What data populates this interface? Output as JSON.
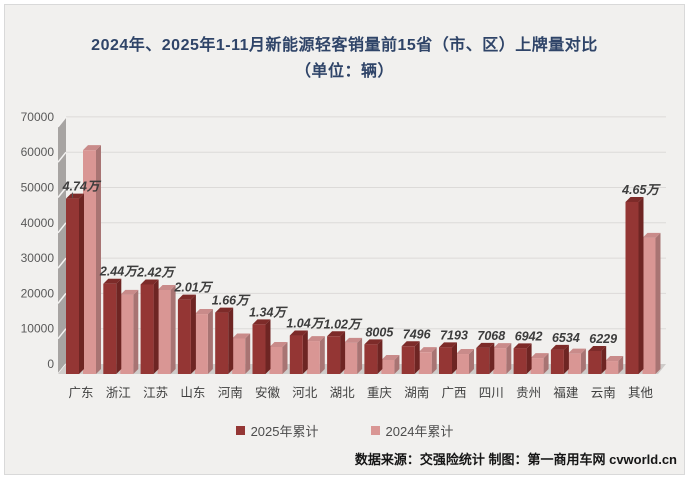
{
  "title": {
    "line1": "2024年、2025年1-11月新能源轻客销量前15省（市、区）上牌量对比",
    "line2": "（单位：辆）",
    "color": "#2f4468"
  },
  "legend": {
    "items": [
      {
        "label": "2025年累计",
        "color": "#943634"
      },
      {
        "label": "2024年累计",
        "color": "#d99694"
      }
    ]
  },
  "source_note": "数据来源：交强险统计 制图：第一商用车网 cvworld.cn",
  "chart_data": {
    "type": "bar",
    "title": "2024年、2025年1-11月新能源轻客销量前15省（市、区）上牌量对比（单位：辆）",
    "unit": "辆",
    "categories": [
      "广东",
      "浙江",
      "江苏",
      "山东",
      "河南",
      "安徽",
      "河北",
      "湖北",
      "重庆",
      "湖南",
      "广西",
      "四川",
      "贵州",
      "福建",
      "云南",
      "其他"
    ],
    "series": [
      {
        "name": "2025年累计",
        "color": "#943634",
        "color_top": "#7d2b29",
        "color_side": "#6e2523",
        "values": [
          47400,
          24400,
          24200,
          20100,
          16600,
          13400,
          10400,
          10200,
          8005,
          7496,
          7193,
          7068,
          6942,
          6534,
          6229,
          46500
        ],
        "data_labels": [
          "4.74万",
          "2.44万",
          "2.42万",
          "2.01万",
          "1.66万",
          "1.34万",
          "1.04万",
          "1.02万",
          "8005",
          "7496",
          "7193",
          "7068",
          "6942",
          "6534",
          "6229",
          "4.65万"
        ]
      },
      {
        "name": "2024年累计",
        "color": "#d99694",
        "color_top": "#c98b8a",
        "color_side": "#a87473",
        "values": [
          60500,
          21400,
          22700,
          16200,
          9600,
          7300,
          8900,
          8400,
          3800,
          5900,
          5400,
          7000,
          4300,
          5500,
          3500,
          36800
        ]
      }
    ],
    "y_axis": {
      "min": 0,
      "max": 70000,
      "step": 10000,
      "ticks": [
        "0",
        "10000",
        "20000",
        "30000",
        "40000",
        "50000",
        "60000",
        "70000"
      ]
    },
    "ylim": [
      0,
      70000
    ],
    "grid": true,
    "legend_position": "bottom",
    "colors": {
      "wall": "#a7a4a2",
      "floor": "#cfccca",
      "gridline": "#dcdad8",
      "hatch": "#f4f3f2",
      "axis_text": "#595959",
      "category_text": "#3f3f3f",
      "value_label": "#3c3c3c"
    }
  }
}
